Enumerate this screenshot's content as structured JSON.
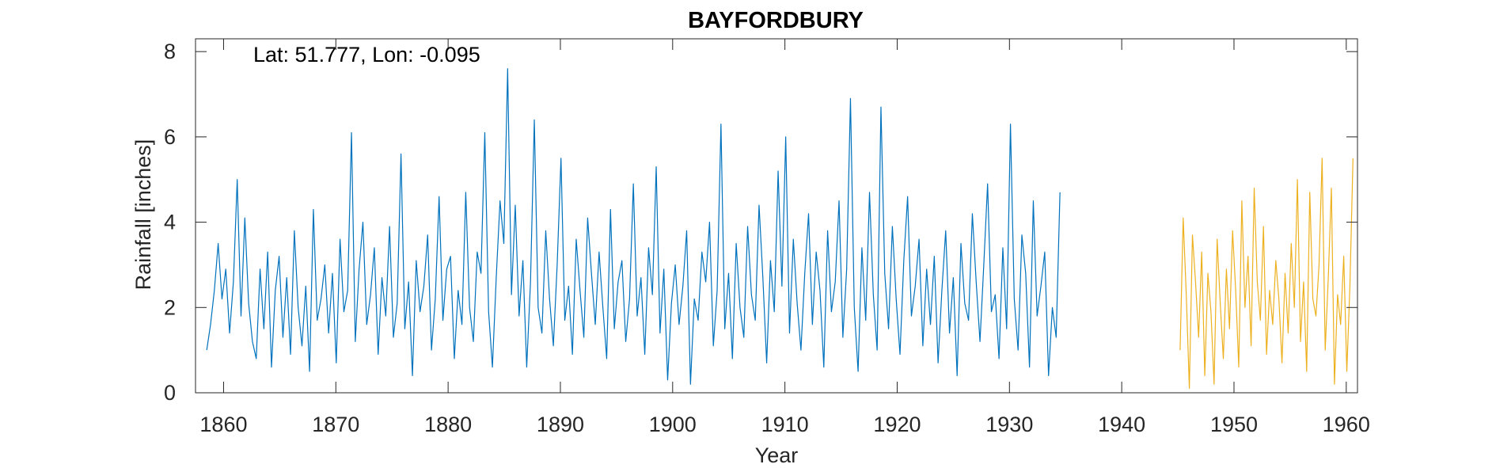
{
  "chart_data": {
    "type": "line",
    "title": "BAYFORDBURY",
    "annotation": "Lat: 51.777, Lon: -0.095",
    "xlabel": "Year",
    "ylabel": "Rainfall [inches]",
    "xlim": [
      1857.5,
      1961
    ],
    "ylim": [
      0,
      8.3
    ],
    "xticks": [
      1860,
      1870,
      1880,
      1890,
      1900,
      1910,
      1920,
      1930,
      1940,
      1950,
      1960
    ],
    "yticks": [
      0,
      2,
      4,
      6,
      8
    ],
    "grid": false,
    "legend": "none",
    "series": [
      {
        "color": "#0072BD",
        "x_start": 1858.5,
        "x_end": 1934.5,
        "values": [
          1.0,
          1.6,
          2.4,
          3.5,
          2.2,
          2.9,
          1.4,
          2.6,
          5.0,
          1.8,
          4.1,
          2.1,
          1.2,
          0.8,
          2.9,
          1.5,
          3.3,
          0.6,
          2.4,
          3.2,
          1.3,
          2.7,
          0.9,
          3.8,
          2.0,
          1.1,
          2.5,
          0.5,
          4.3,
          1.7,
          2.2,
          3.0,
          1.4,
          2.8,
          0.7,
          3.6,
          1.9,
          2.4,
          6.1,
          1.2,
          2.9,
          4.0,
          1.6,
          2.3,
          3.4,
          0.9,
          2.7,
          1.8,
          3.9,
          1.3,
          2.1,
          5.6,
          1.5,
          2.6,
          0.4,
          3.1,
          1.9,
          2.5,
          3.7,
          1.0,
          2.2,
          4.6,
          1.7,
          2.9,
          3.2,
          0.8,
          2.4,
          1.6,
          4.7,
          2.0,
          1.2,
          3.3,
          2.8,
          6.1,
          1.9,
          0.6,
          2.7,
          4.5,
          3.5,
          7.6,
          2.3,
          4.4,
          1.8,
          3.1,
          0.6,
          2.6,
          6.4,
          2.0,
          1.4,
          3.8,
          2.2,
          1.1,
          3.0,
          5.5,
          1.7,
          2.5,
          0.9,
          3.6,
          2.4,
          1.3,
          4.1,
          2.8,
          1.6,
          3.3,
          2.0,
          0.8,
          4.3,
          1.5,
          2.6,
          3.1,
          1.2,
          2.2,
          4.9,
          1.8,
          2.7,
          0.9,
          3.4,
          2.3,
          5.3,
          1.4,
          2.9,
          0.3,
          2.1,
          3.0,
          1.6,
          2.5,
          3.8,
          0.2,
          2.2,
          1.7,
          3.3,
          2.6,
          4.0,
          1.1,
          2.4,
          6.3,
          1.5,
          2.8,
          0.8,
          3.5,
          2.0,
          1.3,
          3.9,
          2.3,
          1.7,
          4.4,
          2.7,
          0.7,
          3.1,
          1.9,
          5.2,
          2.5,
          6.0,
          1.4,
          3.6,
          2.1,
          1.0,
          2.8,
          4.2,
          1.6,
          3.3,
          2.4,
          0.6,
          3.8,
          1.9,
          2.6,
          4.5,
          1.3,
          2.9,
          6.9,
          2.0,
          0.5,
          3.4,
          1.7,
          4.7,
          2.3,
          1.0,
          6.7,
          2.8,
          1.5,
          3.9,
          2.2,
          0.9,
          3.1,
          4.6,
          1.8,
          2.5,
          3.6,
          1.1,
          2.9,
          1.6,
          3.2,
          0.7,
          2.4,
          3.8,
          1.4,
          2.7,
          0.4,
          3.5,
          2.1,
          1.7,
          4.2,
          2.6,
          1.2,
          3.0,
          4.9,
          1.9,
          2.3,
          0.8,
          3.4,
          1.5,
          6.3,
          2.2,
          1.0,
          3.7,
          2.8,
          0.6,
          4.5,
          1.8,
          2.5,
          3.3,
          0.4,
          2.0,
          1.3,
          4.7
        ]
      },
      {
        "color": "#EDB120",
        "x_start": 1945.2,
        "x_end": 1960.6,
        "values": [
          1.0,
          4.1,
          2.3,
          0.1,
          3.7,
          2.6,
          1.3,
          3.3,
          0.4,
          2.8,
          1.9,
          0.2,
          3.6,
          2.1,
          0.8,
          2.9,
          1.5,
          3.8,
          2.4,
          0.6,
          4.5,
          2.0,
          3.2,
          1.1,
          4.8,
          2.6,
          1.7,
          3.9,
          0.9,
          2.4,
          1.6,
          3.1,
          2.2,
          0.7,
          2.8,
          1.4,
          3.5,
          2.0,
          5.0,
          1.2,
          2.6,
          0.5,
          4.7,
          2.2,
          1.8,
          3.0,
          5.5,
          1.0,
          2.7,
          4.8,
          0.2,
          2.3,
          1.6,
          3.2,
          0.5,
          2.5,
          5.5
        ]
      }
    ]
  }
}
